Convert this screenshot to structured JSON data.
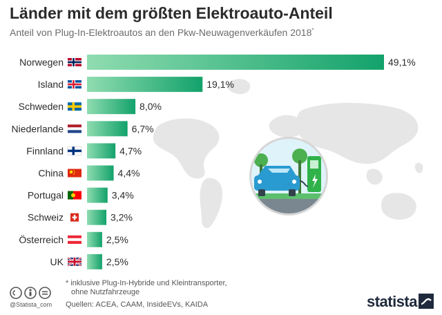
{
  "header": {
    "title": "Länder mit dem größten Elektroauto-Anteil",
    "subtitle": "Anteil von Plug-In-Elektroautos an den Pkw-Neuwagenverkäufen 2018",
    "subtitle_marker": "*"
  },
  "footer": {
    "footnote_line1": "* inklusive Plug-In-Hybride und Kleintransporter,",
    "footnote_line2": "ohne Nutzfahrzeuge",
    "sources": "Quellen: ACEA, CAAM, InsideEVs, KAIDA",
    "handle": "@Statista_com",
    "brand": "statista"
  },
  "colors": {
    "bar_start": "#8fdcb0",
    "bar_end": "#13a26b",
    "title": "#2b2b2b",
    "map": "#e6e6e6"
  },
  "icons": [
    "creative-commons-icon",
    "attribution-icon",
    "equals-icon",
    "world-map-icon",
    "ev-charging-illustration-icon",
    "statista-logo-icon"
  ],
  "chart_data": {
    "type": "bar",
    "orientation": "horizontal",
    "categories": [
      "Norwegen",
      "Island",
      "Schweden",
      "Niederlande",
      "Finnland",
      "China",
      "Portugal",
      "Schweiz",
      "Österreich",
      "UK"
    ],
    "flags": [
      "norway",
      "iceland",
      "sweden",
      "netherlands",
      "finland",
      "china",
      "portugal",
      "switzerland",
      "austria",
      "uk"
    ],
    "values": [
      49.1,
      19.1,
      8.0,
      6.7,
      4.7,
      4.4,
      3.4,
      3.2,
      2.5,
      2.5
    ],
    "value_labels": [
      "49,1%",
      "19,1%",
      "8,0%",
      "6,7%",
      "4,7%",
      "4,4%",
      "3,4%",
      "3,2%",
      "2,5%",
      "2,5%"
    ],
    "unit": "%",
    "xlim": [
      0,
      49.1
    ],
    "grid": false,
    "legend": "none"
  }
}
